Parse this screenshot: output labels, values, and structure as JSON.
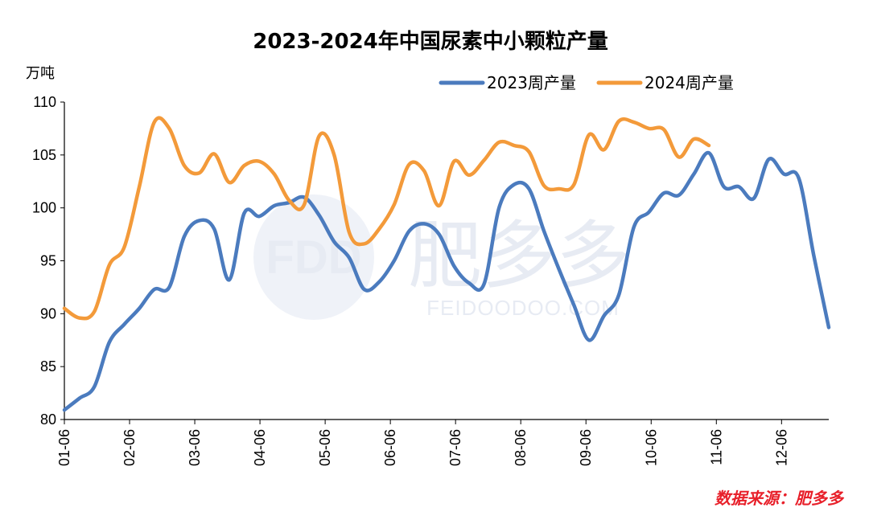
{
  "chart_data": {
    "type": "line",
    "title": "2023-2024年中国尿素中小颗粒产量",
    "ylabel": "万吨",
    "xlabel": "",
    "ylim": [
      80,
      110
    ],
    "yticks": [
      80,
      85,
      90,
      95,
      100,
      105,
      110
    ],
    "xticks": [
      "01-06",
      "02-06",
      "03-06",
      "04-06",
      "05-06",
      "06-06",
      "07-06",
      "08-06",
      "09-06",
      "10-06",
      "11-06",
      "12-06"
    ],
    "x_weeks": [
      1,
      2,
      3,
      4,
      5,
      6,
      7,
      8,
      9,
      10,
      11,
      12,
      13,
      14,
      15,
      16,
      17,
      18,
      19,
      20,
      21,
      22,
      23,
      24,
      25,
      26,
      27,
      28,
      29,
      30,
      31,
      32,
      33,
      34,
      35,
      36,
      37,
      38,
      39,
      40,
      41,
      42,
      43,
      44,
      45,
      46,
      47,
      48,
      49,
      50,
      51,
      52
    ],
    "legend_position": "top-right",
    "grid": false,
    "series": [
      {
        "name": "2023周产量",
        "color": "#4b7bbe",
        "values": [
          80.9,
          82.0,
          83.1,
          87.3,
          89.0,
          90.5,
          92.3,
          92.5,
          97.3,
          98.8,
          98.0,
          93.2,
          99.5,
          99.2,
          100.2,
          100.5,
          101.0,
          99.3,
          96.8,
          95.3,
          92.3,
          93.0,
          95.0,
          97.8,
          98.5,
          97.5,
          94.5,
          92.9,
          92.8,
          100.0,
          102.2,
          101.8,
          97.8,
          94.2,
          90.8,
          87.5,
          89.8,
          91.8,
          98.2,
          99.6,
          101.4,
          101.2,
          103.2,
          105.2,
          102.0,
          102.0,
          100.9,
          104.6,
          103.2,
          102.8,
          95.5,
          88.7
        ]
      },
      {
        "name": "2024周产量",
        "color": "#f39a3a",
        "values": [
          90.5,
          89.6,
          90.2,
          94.6,
          96.3,
          102.0,
          108.1,
          107.5,
          104.0,
          103.3,
          105.1,
          102.4,
          104.0,
          104.4,
          103.2,
          100.7,
          100.3,
          106.8,
          105.0,
          97.7,
          96.6,
          98.0,
          100.3,
          104.1,
          103.5,
          100.2,
          104.4,
          103.1,
          104.5,
          106.2,
          105.9,
          105.3,
          102.1,
          101.8,
          102.2,
          106.9,
          105.5,
          108.2,
          108.1,
          107.5,
          107.4,
          104.8,
          106.5,
          105.9
        ]
      }
    ]
  },
  "watermark": {
    "logo_text": "FDD",
    "cn_text": "肥多多",
    "en_text": "FEIDOODOO.COM"
  },
  "source": "数据来源：肥多多"
}
